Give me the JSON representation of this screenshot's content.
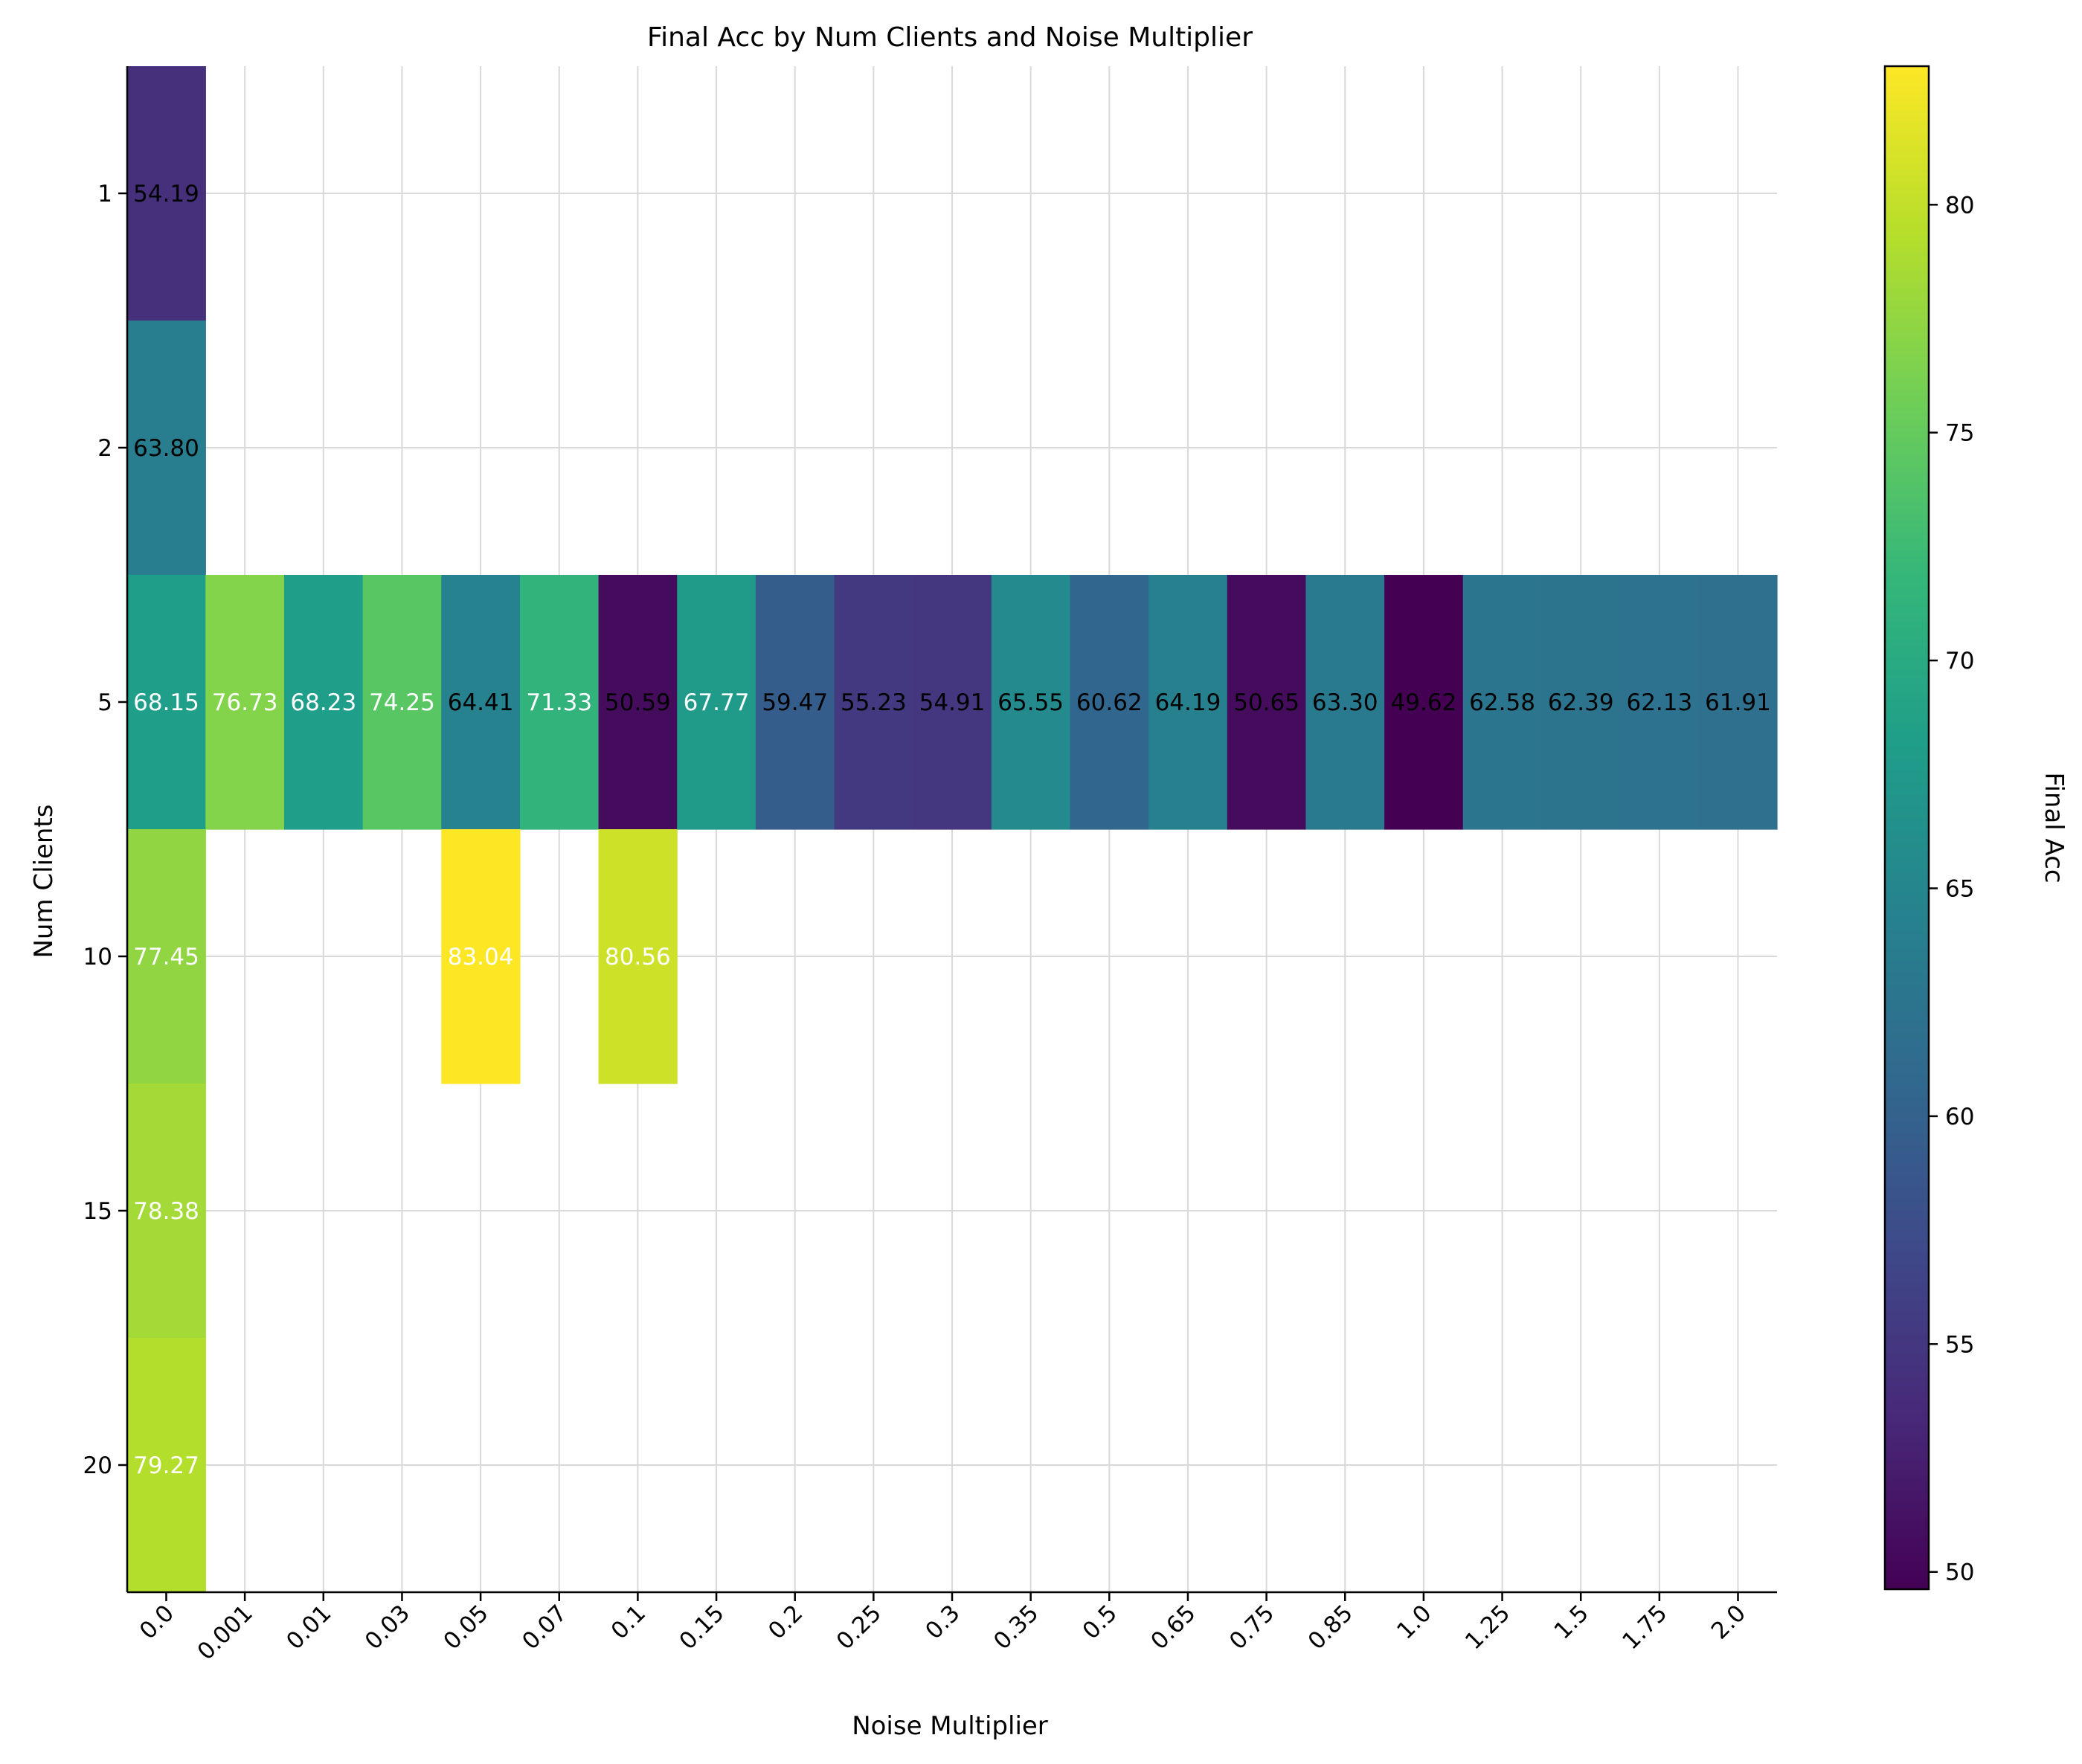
{
  "chart_data": {
    "type": "heatmap",
    "title": "Final Acc by Num Clients and Noise Multiplier",
    "xlabel": "Noise Multiplier",
    "ylabel": "Num Clients",
    "x_categories": [
      "0.0",
      "0.001",
      "0.01",
      "0.03",
      "0.05",
      "0.07",
      "0.1",
      "0.15",
      "0.2",
      "0.25",
      "0.3",
      "0.35",
      "0.5",
      "0.65",
      "0.75",
      "0.85",
      "1.0",
      "1.25",
      "1.5",
      "1.75",
      "2.0"
    ],
    "y_categories": [
      "1",
      "2",
      "5",
      "10",
      "15",
      "20"
    ],
    "cells": [
      {
        "x": "0.0",
        "y": "1",
        "value": 54.19
      },
      {
        "x": "0.0",
        "y": "2",
        "value": 63.8
      },
      {
        "x": "0.0",
        "y": "5",
        "value": 68.15
      },
      {
        "x": "0.001",
        "y": "5",
        "value": 76.73
      },
      {
        "x": "0.01",
        "y": "5",
        "value": 68.23
      },
      {
        "x": "0.03",
        "y": "5",
        "value": 74.25
      },
      {
        "x": "0.05",
        "y": "5",
        "value": 64.41
      },
      {
        "x": "0.07",
        "y": "5",
        "value": 71.33
      },
      {
        "x": "0.1",
        "y": "5",
        "value": 50.59
      },
      {
        "x": "0.15",
        "y": "5",
        "value": 67.77
      },
      {
        "x": "0.2",
        "y": "5",
        "value": 59.47
      },
      {
        "x": "0.25",
        "y": "5",
        "value": 55.23
      },
      {
        "x": "0.3",
        "y": "5",
        "value": 54.91
      },
      {
        "x": "0.35",
        "y": "5",
        "value": 65.55
      },
      {
        "x": "0.5",
        "y": "5",
        "value": 60.62
      },
      {
        "x": "0.65",
        "y": "5",
        "value": 64.19
      },
      {
        "x": "0.75",
        "y": "5",
        "value": 50.65
      },
      {
        "x": "0.85",
        "y": "5",
        "value": 63.3
      },
      {
        "x": "1.0",
        "y": "5",
        "value": 49.62
      },
      {
        "x": "1.25",
        "y": "5",
        "value": 62.58
      },
      {
        "x": "1.5",
        "y": "5",
        "value": 62.39
      },
      {
        "x": "1.75",
        "y": "5",
        "value": 62.13
      },
      {
        "x": "2.0",
        "y": "5",
        "value": 61.91
      },
      {
        "x": "0.0",
        "y": "10",
        "value": 77.45
      },
      {
        "x": "0.05",
        "y": "10",
        "value": 83.04
      },
      {
        "x": "0.1",
        "y": "10",
        "value": 80.56
      },
      {
        "x": "0.0",
        "y": "15",
        "value": 78.38
      },
      {
        "x": "0.0",
        "y": "20",
        "value": 79.27
      }
    ],
    "colorbar": {
      "label": "Final Acc",
      "colormap": "viridis",
      "vmin": 49.62,
      "vmax": 83.04,
      "ticks": [
        "50",
        "55",
        "60",
        "65",
        "70",
        "75",
        "80"
      ]
    },
    "grid": true,
    "cell_text_color_rule": "white below 66.33 mid-range text uses black/white per colormap brightness"
  }
}
